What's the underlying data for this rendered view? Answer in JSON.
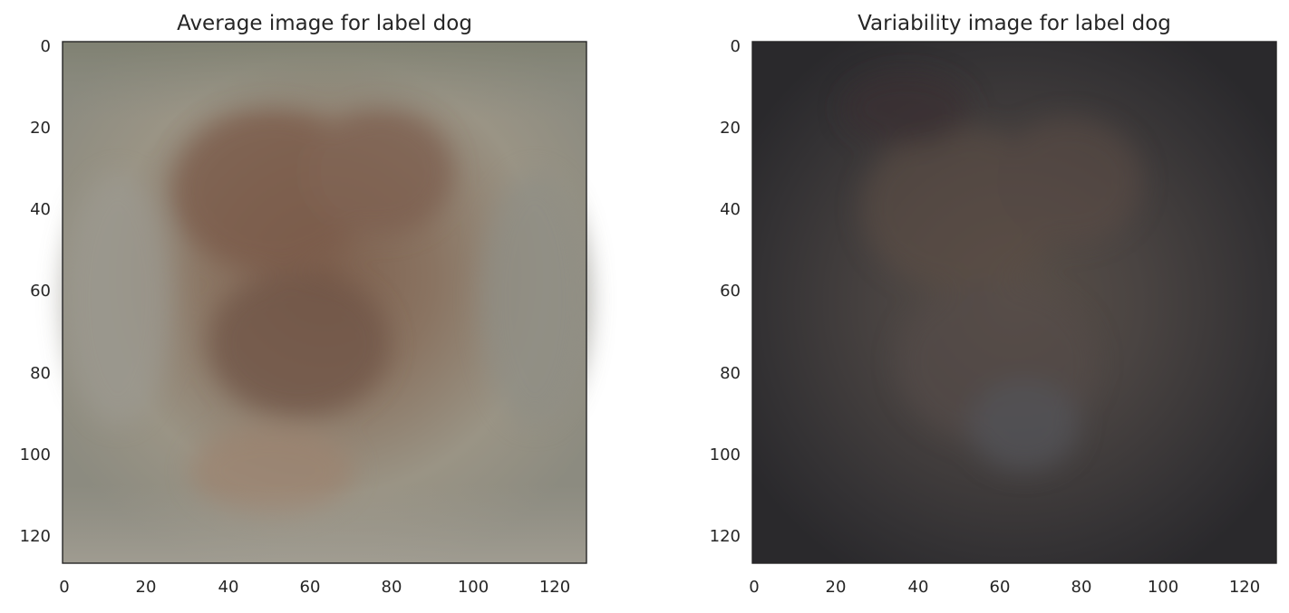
{
  "chart_data": [
    {
      "type": "heatmap",
      "title": "Average image for label dog",
      "xlabel": "",
      "ylabel": "",
      "xlim": [
        0,
        128
      ],
      "ylim": [
        128,
        0
      ],
      "x_ticks": [
        "0",
        "20",
        "40",
        "60",
        "80",
        "100",
        "120"
      ],
      "y_ticks": [
        "0",
        "20",
        "40",
        "60",
        "80",
        "100",
        "120"
      ],
      "grid": false,
      "image_shape": [
        128,
        128,
        3
      ],
      "background_color": "#8c8a80",
      "subject_color": "#7a5e4c"
    },
    {
      "type": "heatmap",
      "title": "Variability image for label dog",
      "xlabel": "",
      "ylabel": "",
      "xlim": [
        0,
        128
      ],
      "ylim": [
        128,
        0
      ],
      "x_ticks": [
        "0",
        "20",
        "40",
        "60",
        "80",
        "100",
        "120"
      ],
      "y_ticks": [
        "0",
        "20",
        "40",
        "60",
        "80",
        "100",
        "120"
      ],
      "grid": false,
      "image_shape": [
        128,
        128,
        3
      ],
      "background_color": "#2f2d2f",
      "subject_color": "#5a5048"
    }
  ]
}
